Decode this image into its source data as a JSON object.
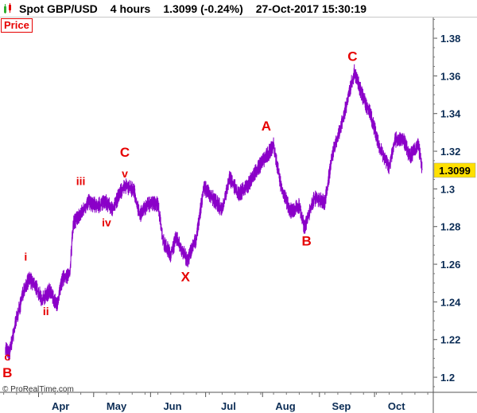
{
  "header": {
    "instrument": "Spot GBP/USD",
    "timeframe": "4 hours",
    "last_value": "1.3099",
    "change": "(-0.24%)",
    "timestamp": "27-Oct-2017 15:30:19"
  },
  "panel_label": "Price",
  "copyright": "© ProRealTime.com",
  "colors": {
    "price_line": "#8a00c8",
    "wave_label": "#e60000",
    "axis_text": "#0b2c55",
    "last_price_badge": "#ffe000"
  },
  "chart_data": {
    "type": "line",
    "title": "",
    "xlabel": "",
    "ylabel": "",
    "ylim": [
      1.192,
      1.391
    ],
    "y_ticks": [
      "1.38",
      "1.36",
      "1.34",
      "1.32",
      "1.3",
      "1.28",
      "1.26",
      "1.24",
      "1.22",
      "1.2"
    ],
    "x_tick_labels": [
      "Apr",
      "May",
      "Jun",
      "Jul",
      "Aug",
      "Sep",
      "Oct"
    ],
    "last_price_label": "1.3099",
    "grid": false,
    "series": [
      {
        "x": [
          "2017-03-14",
          "2017-03-16",
          "2017-03-20",
          "2017-03-22",
          "2017-03-24",
          "2017-03-27",
          "2017-03-30",
          "2017-04-03",
          "2017-04-07",
          "2017-04-11",
          "2017-04-14",
          "2017-04-18",
          "2017-04-20",
          "2017-04-25",
          "2017-04-28",
          "2017-05-03",
          "2017-05-08",
          "2017-05-11",
          "2017-05-15",
          "2017-05-18",
          "2017-05-23",
          "2017-05-26",
          "2017-05-31",
          "2017-06-05",
          "2017-06-08",
          "2017-06-12",
          "2017-06-15",
          "2017-06-19",
          "2017-06-21",
          "2017-06-26",
          "2017-06-30",
          "2017-07-05",
          "2017-07-10",
          "2017-07-14",
          "2017-07-19",
          "2017-07-24",
          "2017-07-28",
          "2017-08-03",
          "2017-08-07",
          "2017-08-11",
          "2017-08-16",
          "2017-08-21",
          "2017-08-24",
          "2017-08-29",
          "2017-09-04",
          "2017-09-08",
          "2017-09-13",
          "2017-09-20",
          "2017-09-25",
          "2017-09-29",
          "2017-10-04",
          "2017-10-09",
          "2017-10-12",
          "2017-10-17",
          "2017-10-20",
          "2017-10-25",
          "2017-10-27"
        ],
        "values": [
          1.216,
          1.212,
          1.231,
          1.238,
          1.247,
          1.252,
          1.249,
          1.241,
          1.246,
          1.238,
          1.252,
          1.255,
          1.282,
          1.288,
          1.293,
          1.291,
          1.293,
          1.289,
          1.297,
          1.302,
          1.299,
          1.286,
          1.292,
          1.292,
          1.272,
          1.265,
          1.274,
          1.266,
          1.262,
          1.274,
          1.301,
          1.295,
          1.289,
          1.306,
          1.297,
          1.302,
          1.309,
          1.317,
          1.323,
          1.302,
          1.288,
          1.291,
          1.279,
          1.295,
          1.293,
          1.318,
          1.334,
          1.362,
          1.348,
          1.339,
          1.321,
          1.312,
          1.326,
          1.326,
          1.317,
          1.323,
          1.31
        ]
      }
    ],
    "annotations": [
      {
        "text": "c",
        "x": "2017-03-15",
        "y": 1.209
      },
      {
        "text": "B",
        "x": "2017-03-15",
        "y": 1.2
      },
      {
        "text": "i",
        "x": "2017-03-25",
        "y": 1.262
      },
      {
        "text": "ii",
        "x": "2017-04-05",
        "y": 1.233
      },
      {
        "text": "iii",
        "x": "2017-04-24",
        "y": 1.302
      },
      {
        "text": "iv",
        "x": "2017-05-08",
        "y": 1.28
      },
      {
        "text": "v",
        "x": "2017-05-18",
        "y": 1.306
      },
      {
        "text": "C",
        "x": "2017-05-18",
        "y": 1.317
      },
      {
        "text": "X",
        "x": "2017-06-20",
        "y": 1.251
      },
      {
        "text": "A",
        "x": "2017-08-03",
        "y": 1.331
      },
      {
        "text": "B",
        "x": "2017-08-25",
        "y": 1.27
      },
      {
        "text": "C",
        "x": "2017-09-19",
        "y": 1.368
      }
    ]
  }
}
